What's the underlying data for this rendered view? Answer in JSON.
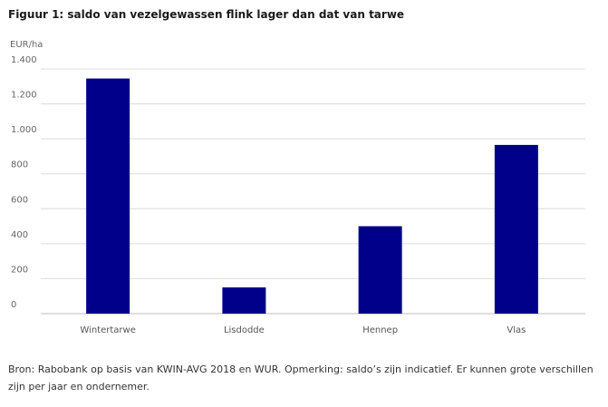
{
  "chart_data": {
    "type": "bar",
    "title": "Figuur 1: saldo van vezelgewassen flink lager dan dat van tarwe",
    "ylabel": "EUR/ha",
    "xlabel": "",
    "categories": [
      "Wintertarwe",
      "Lisdodde",
      "Hennep",
      "Vlas"
    ],
    "values": [
      1345,
      150,
      500,
      965
    ],
    "ylim": [
      0,
      1400
    ],
    "yticks": [
      0,
      200,
      400,
      600,
      800,
      1000,
      1200,
      1400
    ],
    "ytick_labels": [
      "0",
      "200",
      "400",
      "600",
      "800",
      "1.000",
      "1.200",
      "1.400"
    ],
    "bar_color": "#00008b",
    "grid": true
  },
  "footer": {
    "source": "Bron: Rabobank op basis van KWIN-AVG 2018 en WUR. Opmerking: saldo’s zijn indicatief. Er kunnen grote verschillen zijn per jaar en ondernemer."
  }
}
